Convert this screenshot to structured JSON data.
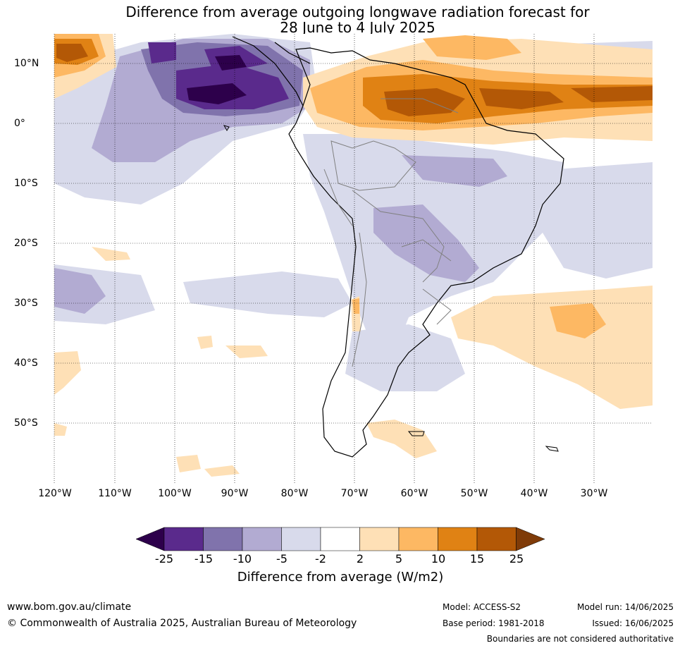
{
  "title": {
    "line1": "Difference from average outgoing longwave radiation forecast for",
    "line2": "28 June to 4 July 2025"
  },
  "map": {
    "lat_labels": [
      "10°N",
      "0°",
      "10°S",
      "20°S",
      "30°S",
      "40°S",
      "50°S"
    ],
    "lon_labels": [
      "120°W",
      "110°W",
      "100°W",
      "90°W",
      "80°W",
      "70°W",
      "60°W",
      "50°W",
      "40°W",
      "30°W"
    ]
  },
  "colorbar": {
    "ticks": [
      "-25",
      "-15",
      "-10",
      "-5",
      "-2",
      "2",
      "5",
      "10",
      "15",
      "25"
    ],
    "colors": [
      "#2d004b",
      "#5a2a8c",
      "#8073ac",
      "#b2abd2",
      "#d8daeb",
      "#ffffff",
      "#fee0b6",
      "#fdb863",
      "#e08214",
      "#b35806",
      "#7f3b08"
    ],
    "title": "Difference from average (W/m2)"
  },
  "footer": {
    "url": "www.bom.gov.au/climate",
    "copyright": "© Commonwealth of Australia 2025, Australian Bureau of Meteorology",
    "model": "Model: ACCESS-S2",
    "base_period": "Base period: 1981-2018",
    "model_run": "Model run: 14/06/2025",
    "issued": "Issued: 16/06/2025",
    "disclaimer": "Boundaries are not considered authoritative"
  }
}
